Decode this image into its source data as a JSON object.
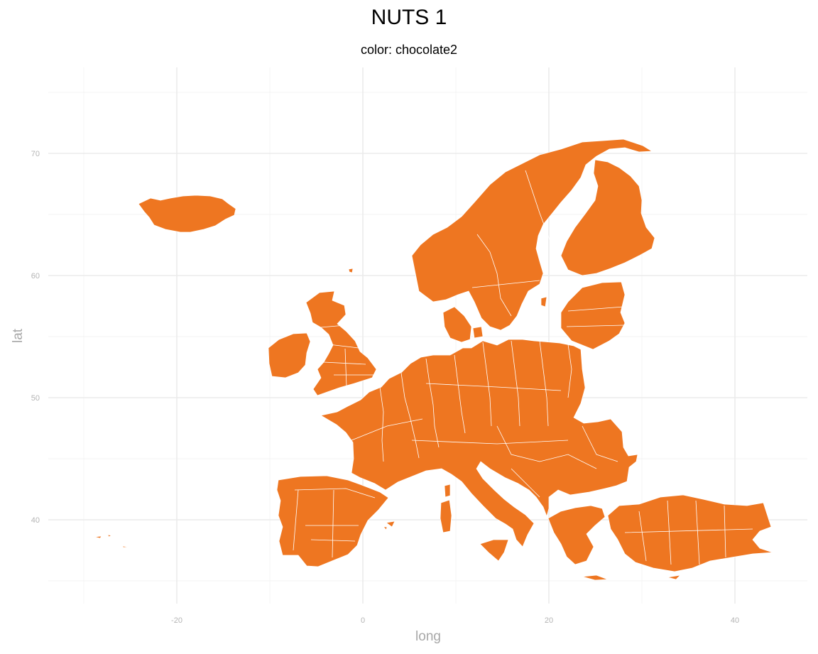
{
  "title": "NUTS 1",
  "subtitle": "color: chocolate2",
  "map": {
    "fill_color": "#EE7621",
    "border_color": "#FFFFFF"
  },
  "chart_data": {
    "type": "map",
    "xlabel": "long",
    "ylabel": "lat",
    "xlim": [
      -30,
      48
    ],
    "ylim": [
      33,
      76
    ],
    "x_ticks": [
      -20,
      0,
      20,
      40
    ],
    "x_tick_labels": [
      "-20",
      "0",
      "20",
      "40"
    ],
    "y_ticks": [
      40,
      50,
      60,
      70
    ],
    "y_tick_labels": [
      "40",
      "50",
      "60",
      "70"
    ],
    "x_minor": [
      -30,
      -10,
      10,
      30
    ],
    "y_minor": [
      35,
      45,
      55,
      65,
      75
    ],
    "grid": true
  }
}
